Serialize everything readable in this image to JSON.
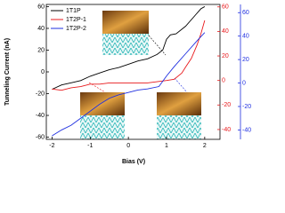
{
  "chart_data": {
    "type": "line",
    "x_label": "Bias (V)",
    "y_label": "Tunneling Current (nA)",
    "xlim": [
      -2.15,
      2.4
    ],
    "xticks": [
      -2,
      -1,
      0,
      1,
      2
    ],
    "ylim": [
      -62,
      62
    ],
    "yticks": [
      -60,
      -40,
      -20,
      0,
      20,
      40,
      60
    ],
    "y2lim": [
      -48,
      62
    ],
    "y2ticks": [
      -40,
      -20,
      0,
      20,
      40,
      60
    ],
    "y2color": "#e8191c",
    "y3lim": [
      -48,
      67
    ],
    "y3ticks": [
      -40,
      -20,
      0,
      20,
      40,
      60
    ],
    "y3color": "#1f2fe0",
    "legend": "upper left",
    "series": [
      {
        "name": "1T1P",
        "color": "#000000",
        "x": [
          -2,
          -1.75,
          -1.5,
          -1.25,
          -1,
          -0.75,
          -0.5,
          -0.25,
          0,
          0.25,
          0.5,
          0.75,
          0.9,
          1.0,
          1.1,
          1.25,
          1.5,
          1.75,
          1.9,
          2.0
        ],
        "values": [
          -16,
          -12,
          -10,
          -8,
          -4,
          -1,
          2,
          4,
          7,
          10,
          12,
          16,
          20,
          30,
          34,
          35,
          42,
          52,
          58,
          60
        ]
      },
      {
        "name": "1T2P-1",
        "color": "#e8191c",
        "axis": "y2",
        "x": [
          -2,
          -1.75,
          -1.5,
          -1.25,
          -1,
          -0.75,
          -0.5,
          -0.25,
          0,
          0.25,
          0.5,
          0.75,
          1.0,
          1.2,
          1.4,
          1.5,
          1.65,
          1.8,
          1.9,
          2.0
        ],
        "values": [
          -7,
          -8,
          -6,
          -5,
          -3,
          -3,
          -2,
          -2,
          -2,
          -2,
          -2,
          -1,
          0,
          1,
          6,
          11,
          18,
          29,
          38,
          49
        ]
      },
      {
        "name": "1T2P-2",
        "color": "#1f2fe0",
        "axis": "y3",
        "x": [
          -2,
          -1.75,
          -1.5,
          -1.25,
          -1,
          -0.75,
          -0.5,
          -0.25,
          0,
          0.25,
          0.5,
          0.8,
          1.0,
          1.2,
          1.5,
          1.8,
          2.0
        ],
        "values": [
          -45,
          -40,
          -36,
          -30,
          -24,
          -18,
          -13,
          -10,
          -8,
          -6,
          -5,
          -3,
          6,
          14,
          25,
          36,
          43
        ]
      }
    ]
  }
}
